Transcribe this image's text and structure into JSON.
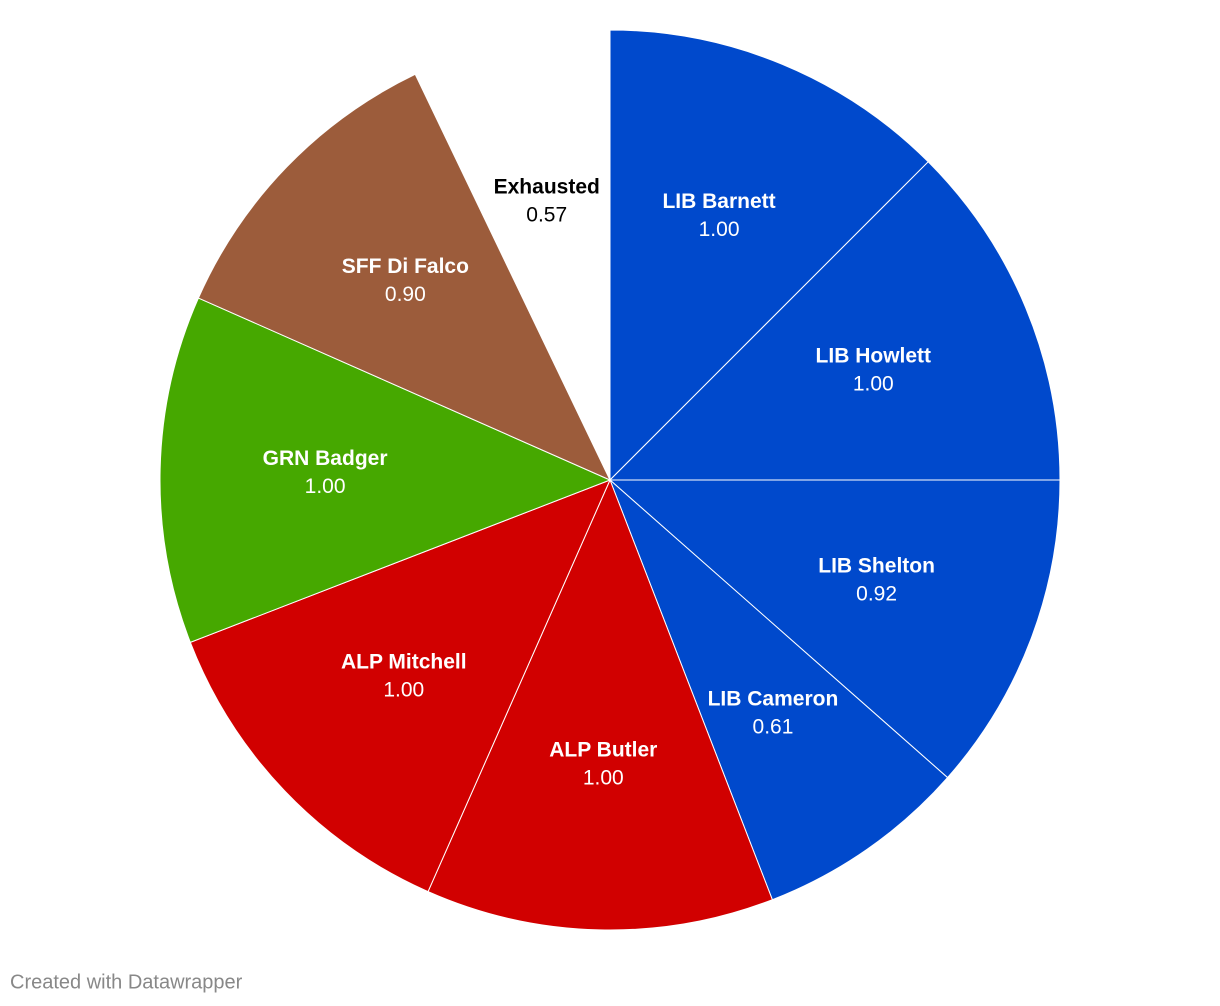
{
  "chart_data": {
    "type": "pie",
    "categories": [
      "LIB Barnett",
      "LIB Howlett",
      "LIB Shelton",
      "LIB Cameron",
      "ALP Butler",
      "ALP Mitchell",
      "GRN Badger",
      "SFF Di Falco",
      "Exhausted"
    ],
    "values": [
      1.0,
      1.0,
      0.92,
      0.61,
      1.0,
      1.0,
      1.0,
      0.9,
      0.57
    ],
    "value_labels": [
      "1.00",
      "1.00",
      "0.92",
      "0.61",
      "1.00",
      "1.00",
      "1.00",
      "0.90",
      "0.57"
    ],
    "colors": [
      "#0049cc",
      "#0049cc",
      "#0049cc",
      "#0049cc",
      "#d10000",
      "#d10000",
      "#46a800",
      "#9c5c3b",
      "#ffffff"
    ]
  },
  "footer": "Created with Datawrapper"
}
